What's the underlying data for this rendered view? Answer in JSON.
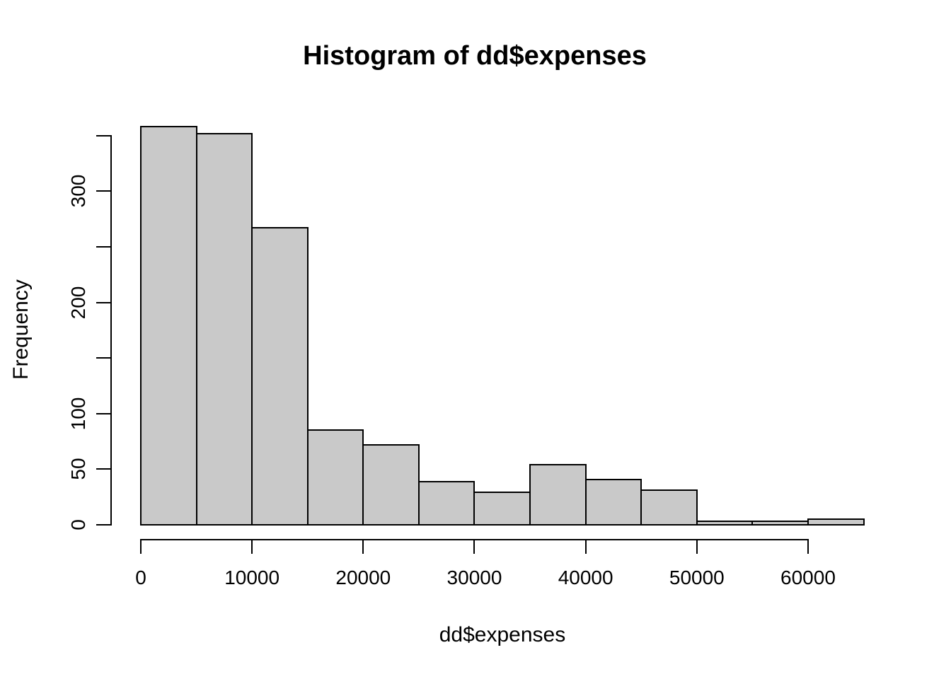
{
  "chart_data": {
    "type": "bar",
    "subtype": "histogram",
    "title": "Histogram of dd$expenses",
    "xlabel": "dd$expenses",
    "ylabel": "Frequency",
    "bin_width": 5000,
    "breaks": [
      0,
      5000,
      10000,
      15000,
      20000,
      25000,
      30000,
      35000,
      40000,
      45000,
      50000,
      55000,
      60000,
      65000
    ],
    "categories": [
      "0-5000",
      "5000-10000",
      "10000-15000",
      "15000-20000",
      "20000-25000",
      "25000-30000",
      "30000-35000",
      "35000-40000",
      "40000-45000",
      "45000-50000",
      "50000-55000",
      "55000-60000",
      "60000-65000"
    ],
    "values": [
      358,
      352,
      267,
      85,
      72,
      39,
      29,
      54,
      41,
      31,
      3,
      3,
      5
    ],
    "x_ticks": [
      0,
      10000,
      20000,
      30000,
      40000,
      50000,
      60000
    ],
    "x_tick_labels": [
      "0",
      "10000",
      "20000",
      "30000",
      "40000",
      "50000",
      "60000"
    ],
    "y_ticks": [
      0,
      50,
      100,
      150,
      200,
      250,
      300,
      350
    ],
    "y_tick_labels": [
      "0",
      "50",
      "100",
      "",
      "200",
      "",
      "300",
      ""
    ],
    "xlim": [
      0,
      65000
    ],
    "ylim": [
      0,
      360
    ],
    "grid": false,
    "legend": false,
    "bar_fill": "#c9c9c9",
    "bar_border": "#000000",
    "background": "#ffffff"
  }
}
